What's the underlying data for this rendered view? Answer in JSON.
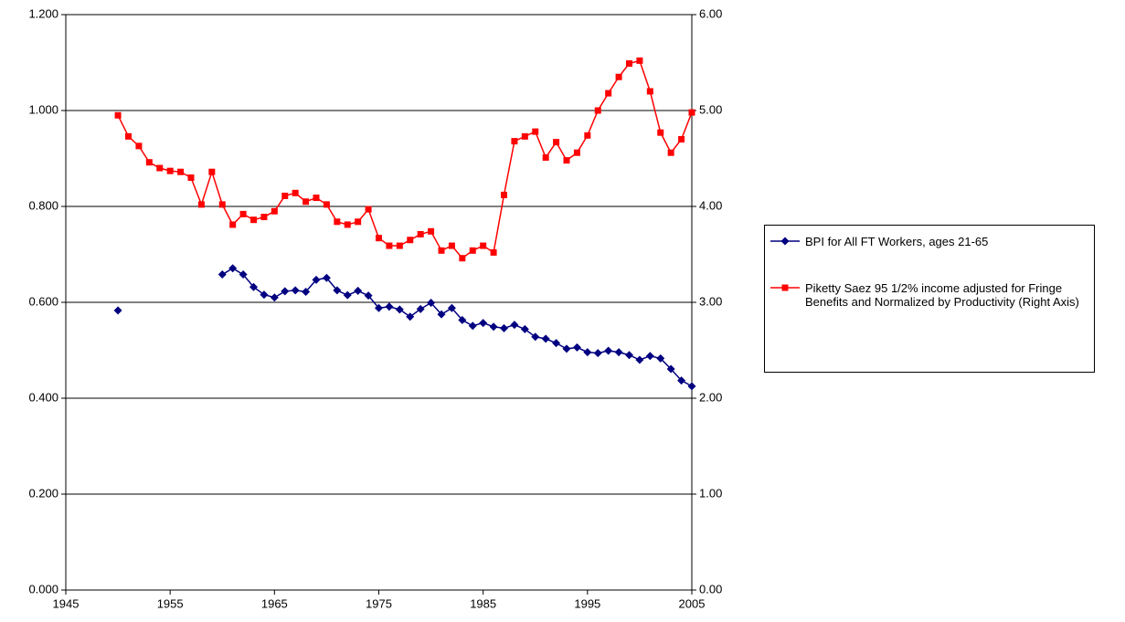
{
  "chart_data": {
    "type": "line",
    "x": [
      1950,
      1951,
      1952,
      1953,
      1954,
      1955,
      1956,
      1957,
      1958,
      1959,
      1960,
      1961,
      1962,
      1963,
      1964,
      1965,
      1966,
      1967,
      1968,
      1969,
      1970,
      1971,
      1972,
      1973,
      1974,
      1975,
      1976,
      1977,
      1978,
      1979,
      1980,
      1981,
      1982,
      1983,
      1984,
      1985,
      1986,
      1987,
      1988,
      1989,
      1990,
      1991,
      1992,
      1993,
      1994,
      1995,
      1996,
      1997,
      1998,
      1999,
      2000,
      2001,
      2002,
      2003,
      2004,
      2005
    ],
    "series": [
      {
        "name": "BPI for All FT Workers, ages 21-65",
        "color": "#000080",
        "marker": "diamond",
        "values": [
          0.583,
          null,
          null,
          null,
          null,
          null,
          null,
          null,
          null,
          null,
          0.658,
          0.671,
          0.658,
          0.632,
          0.616,
          0.61,
          0.623,
          0.625,
          0.622,
          0.647,
          0.651,
          0.625,
          0.615,
          0.624,
          0.614,
          0.588,
          0.591,
          0.585,
          0.57,
          0.586,
          0.599,
          0.575,
          0.588,
          0.563,
          0.551,
          0.557,
          0.549,
          0.546,
          0.553,
          0.544,
          0.528,
          0.524,
          0.515,
          0.503,
          0.506,
          0.496,
          0.494,
          0.499,
          0.496,
          0.49,
          0.48,
          0.488,
          0.483,
          0.461,
          0.437,
          0.425
        ]
      },
      {
        "name": "Piketty Saez 95 1/2% income adjusted for Fringe Benefits and Normalized by Productivity (Right Axis)",
        "color": "#ff0000",
        "marker": "square",
        "axis": "y2",
        "values": [
          4.95,
          4.73,
          4.63,
          4.46,
          4.4,
          4.37,
          4.36,
          4.3,
          4.02,
          4.36,
          4.02,
          3.81,
          3.92,
          3.86,
          3.89,
          3.95,
          4.11,
          4.14,
          4.05,
          4.09,
          4.02,
          3.84,
          3.81,
          3.84,
          3.97,
          3.67,
          3.59,
          3.59,
          3.65,
          3.71,
          3.74,
          3.54,
          3.59,
          3.46,
          3.54,
          3.59,
          3.52,
          4.12,
          4.68,
          4.73,
          4.78,
          4.51,
          4.67,
          4.48,
          4.56,
          4.74,
          5.0,
          5.18,
          5.35,
          5.49,
          5.52,
          5.2,
          4.77,
          4.56,
          4.7,
          4.98
        ]
      }
    ],
    "xlim": [
      1945,
      2005
    ],
    "xticks": [
      1945,
      1955,
      1965,
      1975,
      1985,
      1995,
      2005
    ],
    "ylim": [
      0,
      1.2
    ],
    "yticks": [
      {
        "value": 0,
        "label": "0.000"
      },
      {
        "value": 0.2,
        "label": "0.200"
      },
      {
        "value": 0.4,
        "label": "0.400"
      },
      {
        "value": 0.6,
        "label": "0.600"
      },
      {
        "value": 0.8,
        "label": "0.800"
      },
      {
        "value": 1.0,
        "label": "1.000"
      },
      {
        "value": 1.2,
        "label": "1.200"
      }
    ],
    "y2lim": [
      0,
      6
    ],
    "y2ticks": [
      {
        "value": 0,
        "label": "0.00"
      },
      {
        "value": 1,
        "label": "1.00"
      },
      {
        "value": 2,
        "label": "2.00"
      },
      {
        "value": 3,
        "label": "3.00"
      },
      {
        "value": 4,
        "label": "4.00"
      },
      {
        "value": 5,
        "label": "5.00"
      },
      {
        "value": 6,
        "label": "6.00"
      }
    ],
    "grid": true,
    "legend": "right"
  }
}
